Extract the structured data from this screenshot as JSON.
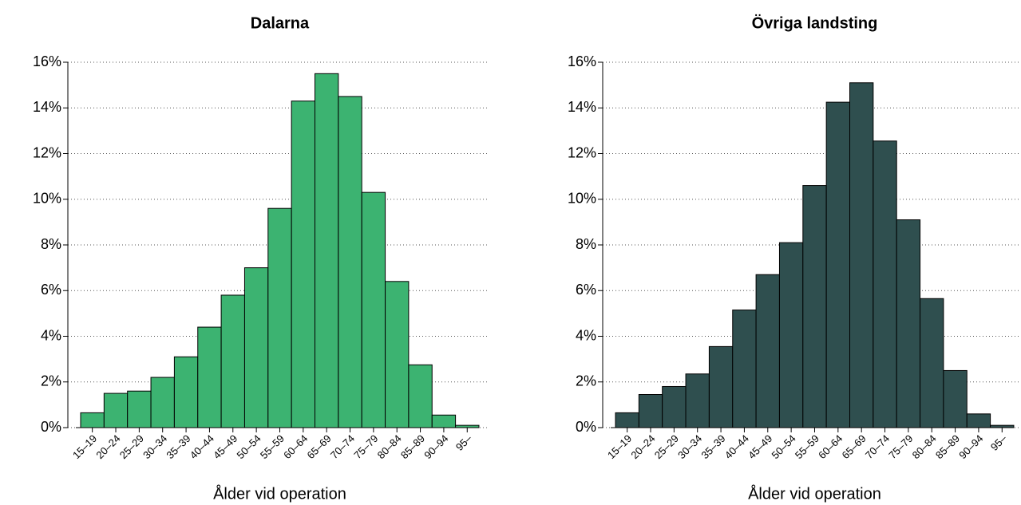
{
  "chart_data": [
    {
      "type": "bar",
      "title": "Dalarna",
      "x_label": "Ålder vid operation",
      "categories": [
        "15–19",
        "20–24",
        "25–29",
        "30–34",
        "35–39",
        "40–44",
        "45–49",
        "50–54",
        "55–59",
        "60–64",
        "65–69",
        "70–74",
        "75–79",
        "80–84",
        "85–89",
        "90–94",
        "95–"
      ],
      "values": [
        0.65,
        1.5,
        1.6,
        2.2,
        3.1,
        4.4,
        5.8,
        7.0,
        9.6,
        14.3,
        15.5,
        14.5,
        10.3,
        6.4,
        2.75,
        0.55,
        0.1
      ],
      "color": "#3cb371",
      "ylim": [
        0,
        16
      ],
      "yticks": [
        {
          "value": 0,
          "label": "0%"
        },
        {
          "value": 2,
          "label": "2%"
        },
        {
          "value": 4,
          "label": "4%"
        },
        {
          "value": 6,
          "label": "6%"
        },
        {
          "value": 8,
          "label": "8%"
        },
        {
          "value": 10,
          "label": "10%"
        },
        {
          "value": 12,
          "label": "12%"
        },
        {
          "value": 14,
          "label": "14%"
        },
        {
          "value": 16,
          "label": "16%"
        }
      ],
      "grid": true
    },
    {
      "type": "bar",
      "title": "Övriga landsting",
      "x_label": "Ålder vid operation",
      "categories": [
        "15–19",
        "20–24",
        "25–29",
        "30–34",
        "35–39",
        "40–44",
        "45–49",
        "50–54",
        "55–59",
        "60–64",
        "65–69",
        "70–74",
        "75–79",
        "80–84",
        "85–89",
        "90–94",
        "95–"
      ],
      "values": [
        0.65,
        1.45,
        1.8,
        2.35,
        3.55,
        5.15,
        6.7,
        8.1,
        10.6,
        14.25,
        15.1,
        12.55,
        9.1,
        5.65,
        2.5,
        0.6,
        0.1
      ],
      "color": "#2f4f4f",
      "ylim": [
        0,
        16
      ],
      "yticks": [
        {
          "value": 0,
          "label": "0%"
        },
        {
          "value": 2,
          "label": "2%"
        },
        {
          "value": 4,
          "label": "4%"
        },
        {
          "value": 6,
          "label": "6%"
        },
        {
          "value": 8,
          "label": "8%"
        },
        {
          "value": 10,
          "label": "10%"
        },
        {
          "value": 12,
          "label": "12%"
        },
        {
          "value": 14,
          "label": "14%"
        },
        {
          "value": 16,
          "label": "16%"
        }
      ],
      "grid": true
    }
  ]
}
